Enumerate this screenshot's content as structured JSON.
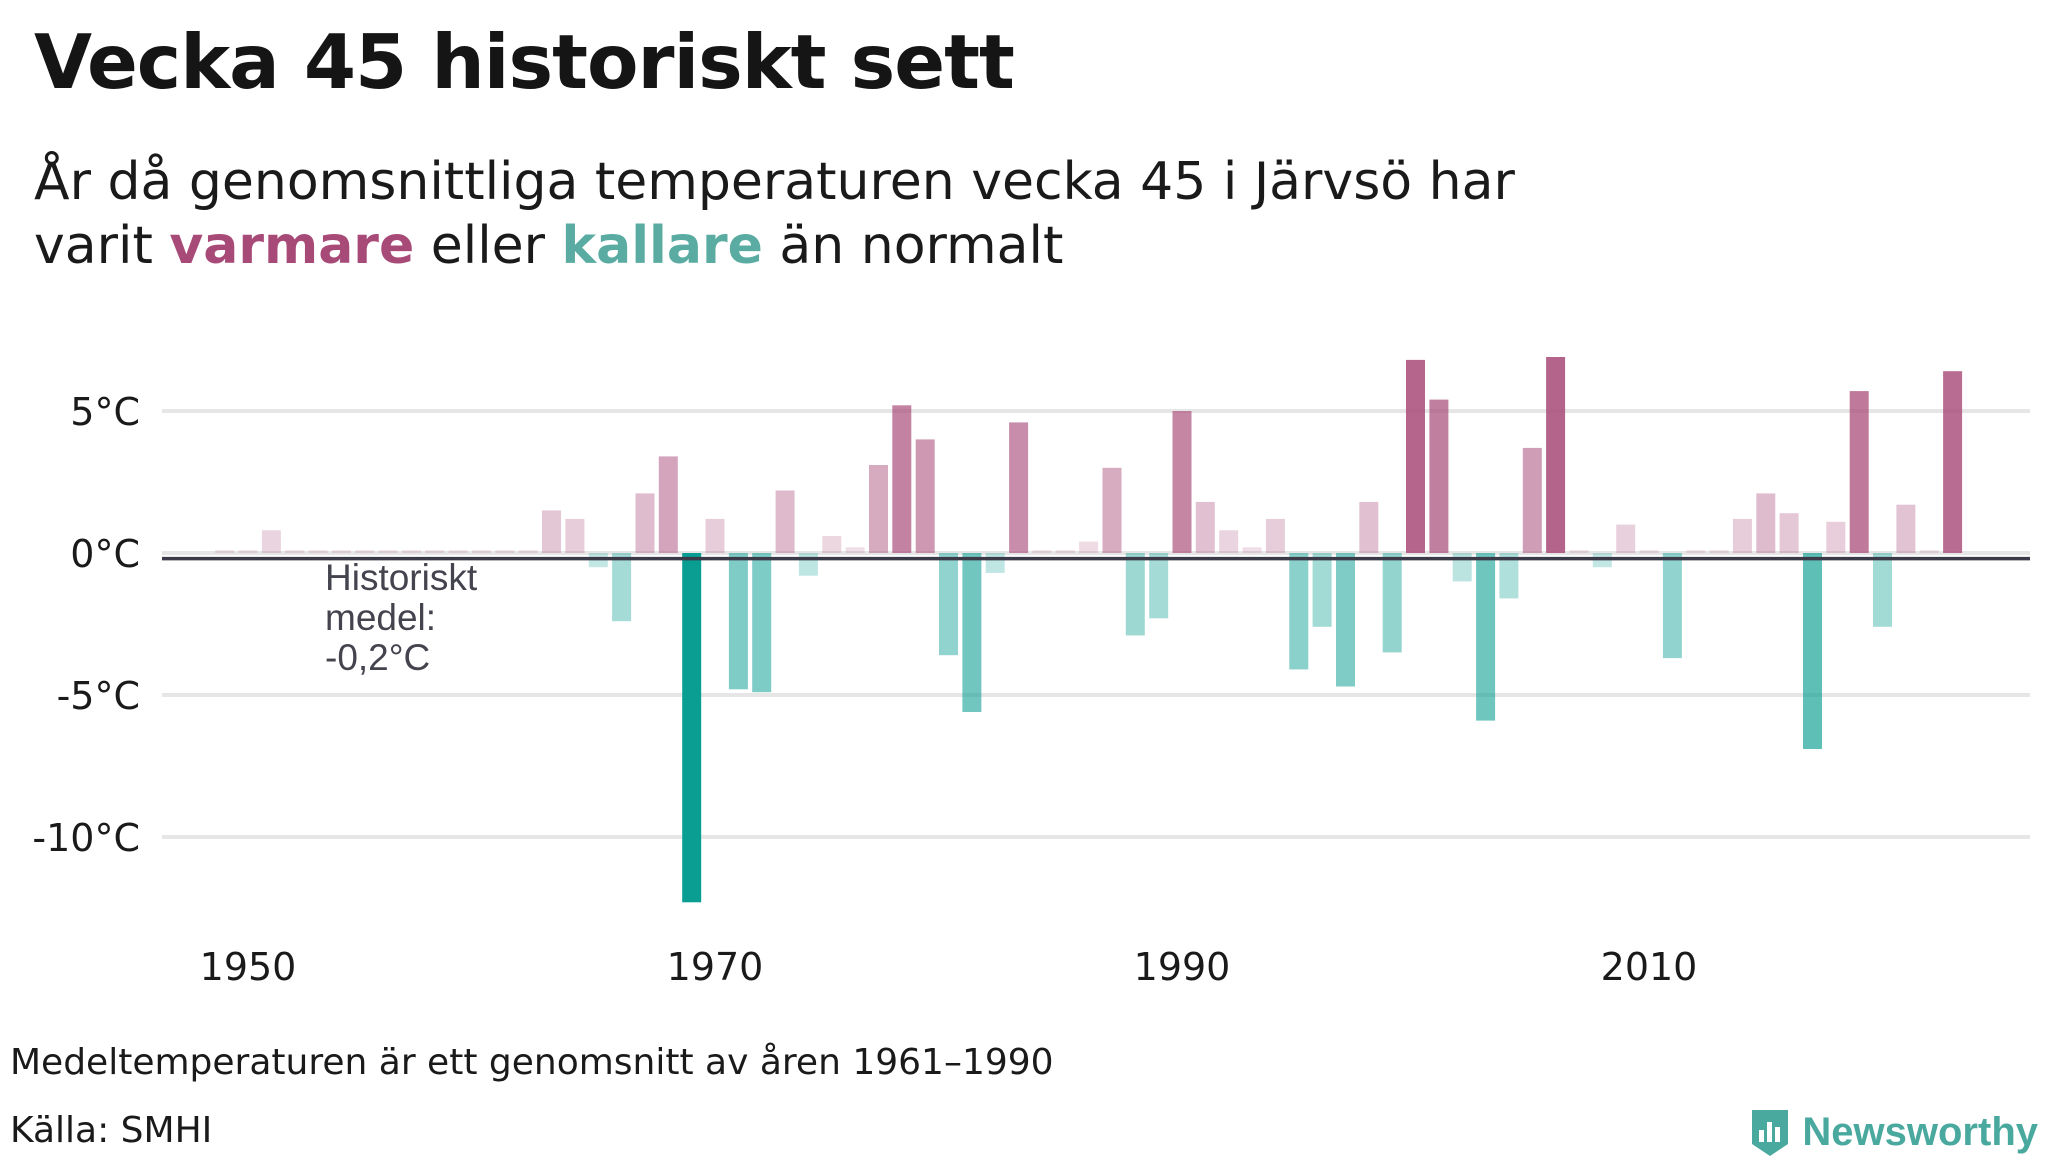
{
  "title": "Vecka 45 historiskt sett",
  "subtitle": {
    "line1": "År då genomsnittliga temperaturen vecka 45 i Järvsö har",
    "line2_prefix": "varit ",
    "warm_word": "varmare",
    "middle": " eller ",
    "cold_word": "kallare",
    "line2_suffix": " än normalt"
  },
  "colors": {
    "warm": "#a84a78",
    "cold": "#0a9e92",
    "grid": "#e6e6e6",
    "baseline": "#3a3a48",
    "brand": "#4aa99e"
  },
  "chart_data": {
    "type": "bar",
    "title": "Vecka 45 historiskt sett",
    "xlabel": "",
    "ylabel": "",
    "baseline_label": "Historiskt medel: -0,2°C",
    "baseline_value": -0.2,
    "ylim": [
      -13,
      7.5
    ],
    "xlim": [
      1947,
      2025
    ],
    "y_ticks": [
      {
        "value": 5,
        "label": "5°C"
      },
      {
        "value": 0,
        "label": "0°C"
      },
      {
        "value": -5,
        "label": "-5°C"
      },
      {
        "value": -10,
        "label": "-10°C"
      }
    ],
    "x_ticks": [
      {
        "value": 1950,
        "label": "1950"
      },
      {
        "value": 1970,
        "label": "1970"
      },
      {
        "value": 1990,
        "label": "1990"
      },
      {
        "value": 2010,
        "label": "2010"
      }
    ],
    "grid": true,
    "legend": "none",
    "years": [
      1949,
      1950,
      1951,
      1952,
      1953,
      1954,
      1955,
      1956,
      1957,
      1958,
      1959,
      1960,
      1961,
      1962,
      1963,
      1964,
      1965,
      1966,
      1967,
      1968,
      1969,
      1970,
      1971,
      1972,
      1973,
      1974,
      1975,
      1976,
      1977,
      1978,
      1979,
      1980,
      1981,
      1982,
      1983,
      1984,
      1985,
      1986,
      1987,
      1988,
      1989,
      1990,
      1991,
      1992,
      1993,
      1994,
      1995,
      1996,
      1997,
      1998,
      1999,
      2000,
      2001,
      2002,
      2003,
      2004,
      2005,
      2006,
      2007,
      2008,
      2009,
      2010,
      2011,
      2012,
      2013,
      2014,
      2015,
      2016,
      2017,
      2018,
      2019,
      2020,
      2021,
      2022,
      2023
    ],
    "values": [
      0.1,
      0.1,
      0.8,
      0.1,
      0.1,
      0.1,
      0.1,
      0.1,
      0.1,
      0.1,
      0.1,
      0.1,
      0.1,
      0.1,
      1.5,
      1.2,
      -0.5,
      -2.4,
      2.1,
      3.4,
      -12.3,
      1.2,
      -4.8,
      -4.9,
      2.2,
      -0.8,
      0.6,
      0.2,
      3.1,
      5.2,
      4.0,
      -3.6,
      -5.6,
      -0.7,
      4.6,
      0.1,
      0.1,
      0.4,
      3.0,
      -2.9,
      -2.3,
      5.0,
      1.8,
      0.8,
      0.2,
      1.2,
      -4.1,
      -2.6,
      -4.7,
      1.8,
      -3.5,
      6.8,
      5.4,
      -1.0,
      -5.9,
      -1.6,
      3.7,
      6.9,
      0.1,
      -0.5,
      1.0,
      0.1,
      -3.7,
      0.1,
      0.1,
      1.2,
      2.1,
      1.4,
      -6.9,
      1.1,
      5.7,
      -2.6,
      1.7,
      0.1,
      6.4
    ]
  },
  "footnote": "Medeltemperaturen är ett genomsnitt av åren 1961–1990",
  "source": "Källa: SMHI",
  "brand": {
    "name": "Newsworthy",
    "logo_icon": "bar-chart-badge-icon"
  }
}
